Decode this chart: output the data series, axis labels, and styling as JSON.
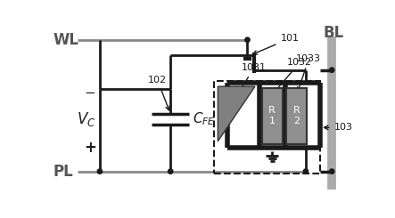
{
  "fig_w": 4.43,
  "fig_h": 2.45,
  "dpi": 100,
  "gray_line": "#888888",
  "black_line": "#1a1a1a",
  "gray_fill": "#808080",
  "label_color": "#555555",
  "r_box_color": "#909090",
  "wl_text": "WL",
  "pl_text": "PL",
  "bl_text": "BL",
  "minus_text": "−",
  "plus_text": "+",
  "n101": "101",
  "n102": "102",
  "n103": "103",
  "n1031": "1031",
  "n1032": "1032",
  "n1033": "1033"
}
